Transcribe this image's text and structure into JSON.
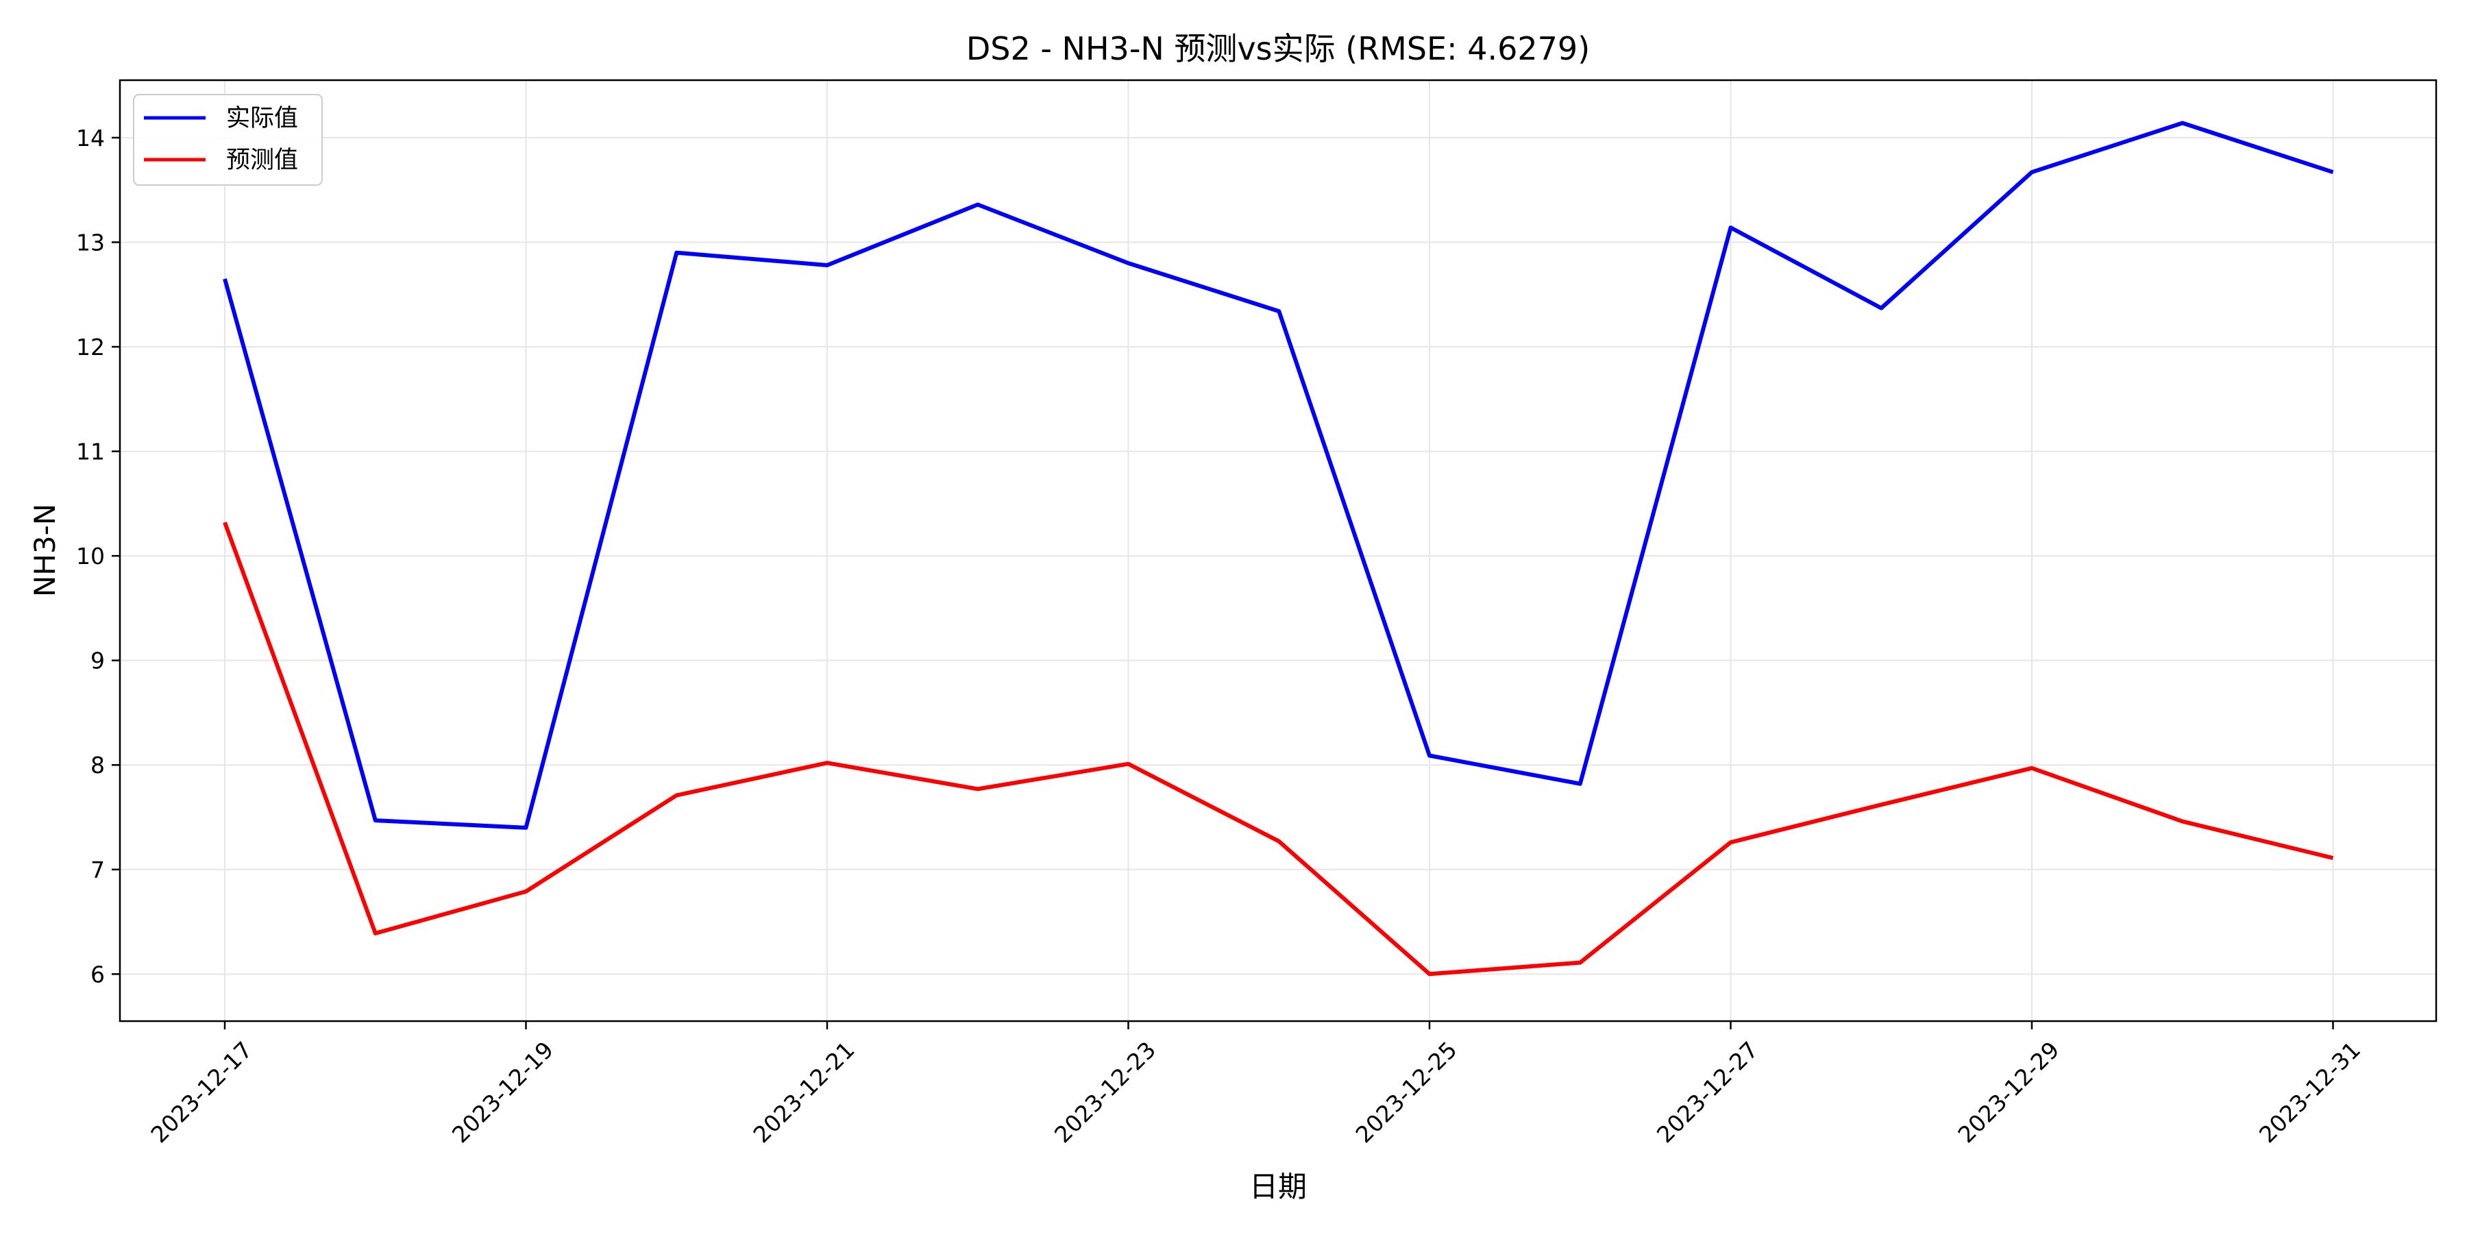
{
  "chart_data": {
    "type": "line",
    "title": "DS2 - NH3-N 预测vs实际 (RMSE: 4.6279)",
    "xlabel": "日期",
    "ylabel": "NH3-N",
    "x": [
      "2023-12-17",
      "2023-12-18",
      "2023-12-19",
      "2023-12-20",
      "2023-12-21",
      "2023-12-22",
      "2023-12-23",
      "2023-12-24",
      "2023-12-25",
      "2023-12-26",
      "2023-12-27",
      "2023-12-28",
      "2023-12-29",
      "2023-12-30",
      "2023-12-31"
    ],
    "x_tick_labels": [
      "2023-12-17",
      "2023-12-19",
      "2023-12-21",
      "2023-12-23",
      "2023-12-25",
      "2023-12-27",
      "2023-12-29",
      "2023-12-31"
    ],
    "ylim": [
      5.55,
      14.55
    ],
    "y_ticks": [
      6,
      7,
      8,
      9,
      10,
      11,
      12,
      13,
      14
    ],
    "grid": true,
    "legend_position": "top-left",
    "series": [
      {
        "name": "实际值",
        "color": "#0000ff",
        "values": [
          12.65,
          7.47,
          7.4,
          12.9,
          12.78,
          13.36,
          12.8,
          12.34,
          8.09,
          7.82,
          13.14,
          12.37,
          13.67,
          14.14,
          13.67
        ]
      },
      {
        "name": "预测值",
        "color": "#ff0000",
        "values": [
          10.32,
          6.39,
          6.79,
          7.71,
          8.02,
          7.77,
          8.01,
          7.27,
          6.0,
          6.11,
          7.26,
          7.62,
          7.97,
          7.46,
          7.11
        ]
      }
    ]
  }
}
